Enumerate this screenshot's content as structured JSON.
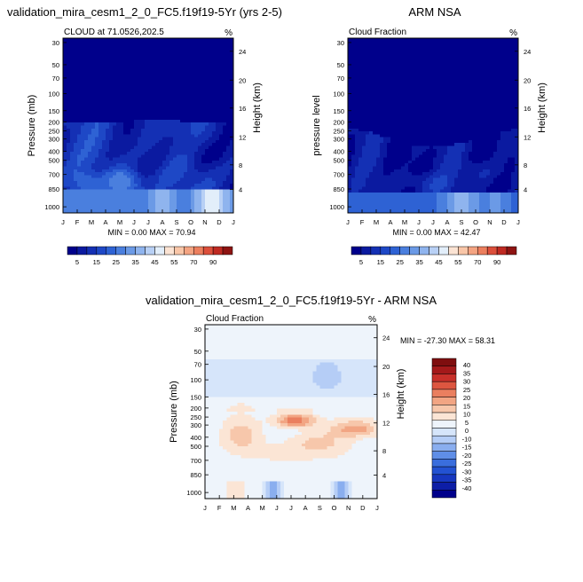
{
  "chart_data": [
    {
      "type": "heatmap",
      "title": "validation_mira_cesm1_2_0_FC5.f19f19-5Yr (yrs 2-5)",
      "subtitle": "CLOUD at 71.0526,202.5",
      "unit": "%",
      "ylabel": "Pressure (mb)",
      "ylabel_right": "Height (km)",
      "x_ticks": [
        "J",
        "F",
        "M",
        "A",
        "M",
        "J",
        "J",
        "A",
        "S",
        "O",
        "N",
        "D",
        "J"
      ],
      "y_ticks": [
        "30",
        "50",
        "70",
        "100",
        "150",
        "200",
        "250",
        "300",
        "400",
        "500",
        "700",
        "850",
        "1000"
      ],
      "y_right_ticks": [
        "24",
        "20",
        "16",
        "12",
        "8",
        "4"
      ],
      "stats_label": "MIN =   0.00 MAX =  70.94",
      "min": 0.0,
      "max": 70.94,
      "colorbar_labels": [
        "5",
        "15",
        "25",
        "35",
        "45",
        "55",
        "70",
        "90"
      ],
      "colorbar_levels": [
        0,
        5,
        10,
        15,
        20,
        25,
        30,
        35,
        40,
        45,
        50,
        55,
        60,
        70,
        80,
        90,
        100
      ]
    },
    {
      "type": "heatmap",
      "title": "ARM NSA",
      "subtitle": "Cloud Fraction",
      "unit": "%",
      "ylabel": "pressure level",
      "ylabel_right": "Height (km)",
      "x_ticks": [
        "J",
        "F",
        "M",
        "A",
        "M",
        "J",
        "J",
        "A",
        "S",
        "O",
        "N",
        "D",
        "J"
      ],
      "y_ticks": [
        "30",
        "50",
        "70",
        "100",
        "150",
        "200",
        "250",
        "300",
        "400",
        "500",
        "700",
        "850",
        "1000"
      ],
      "y_right_ticks": [
        "24",
        "20",
        "16",
        "12",
        "8",
        "4"
      ],
      "stats_label": "MIN =   0.00 MAX =  42.47",
      "min": 0.0,
      "max": 42.47,
      "colorbar_labels": [
        "5",
        "15",
        "25",
        "35",
        "45",
        "55",
        "70",
        "90"
      ],
      "colorbar_levels": [
        0,
        5,
        10,
        15,
        20,
        25,
        30,
        35,
        40,
        45,
        50,
        55,
        60,
        70,
        80,
        90,
        100
      ]
    },
    {
      "type": "heatmap",
      "title": "validation_mira_cesm1_2_0_FC5.f19f19-5Yr - ARM NSA",
      "subtitle": "Cloud Fraction",
      "unit": "%",
      "ylabel": "Pressure (mb)",
      "ylabel_right": "Height (km)",
      "x_ticks": [
        "J",
        "F",
        "M",
        "A",
        "M",
        "J",
        "J",
        "A",
        "S",
        "O",
        "N",
        "D",
        "J"
      ],
      "y_ticks": [
        "30",
        "50",
        "70",
        "100",
        "150",
        "200",
        "250",
        "300",
        "400",
        "500",
        "700",
        "850",
        "1000"
      ],
      "y_right_ticks": [
        "24",
        "20",
        "16",
        "12",
        "8",
        "4"
      ],
      "stats_label": "MIN = -27.30 MAX =  58.31",
      "min": -27.3,
      "max": 58.31,
      "colorbar_labels": [
        "40",
        "35",
        "30",
        "25",
        "20",
        "15",
        "10",
        "5",
        "0",
        "-10",
        "-15",
        "-20",
        "-25",
        "-30",
        "-35",
        "-40"
      ],
      "colorbar_levels": [
        -45,
        -40,
        -35,
        -30,
        -25,
        -20,
        -15,
        -10,
        -5,
        0,
        5,
        10,
        15,
        20,
        25,
        30,
        35,
        40,
        45
      ]
    }
  ],
  "colors": {
    "model_obs": [
      "#00008b",
      "#0b1aa0",
      "#1430b4",
      "#1e48c6",
      "#2e62d4",
      "#4a7fde",
      "#6b9ae6",
      "#8fb4ee",
      "#b8d0f5",
      "#e2eefa",
      "#fbe3d3",
      "#f9c6a8",
      "#f4a482",
      "#ec7f5e",
      "#dc4f3b",
      "#bf2a22",
      "#8e1412"
    ],
    "diff": [
      "#00008b",
      "#0d1ea6",
      "#1737bf",
      "#2352d2",
      "#3a6edd",
      "#5f8ee7",
      "#8aaeef",
      "#b5cdf6",
      "#d6e5fa",
      "#eef4fb",
      "#fbe5d5",
      "#f7c7ab",
      "#f2a583",
      "#ea7f5f",
      "#dd5640",
      "#c8302a",
      "#a4191a",
      "#7f0e0f"
    ]
  }
}
